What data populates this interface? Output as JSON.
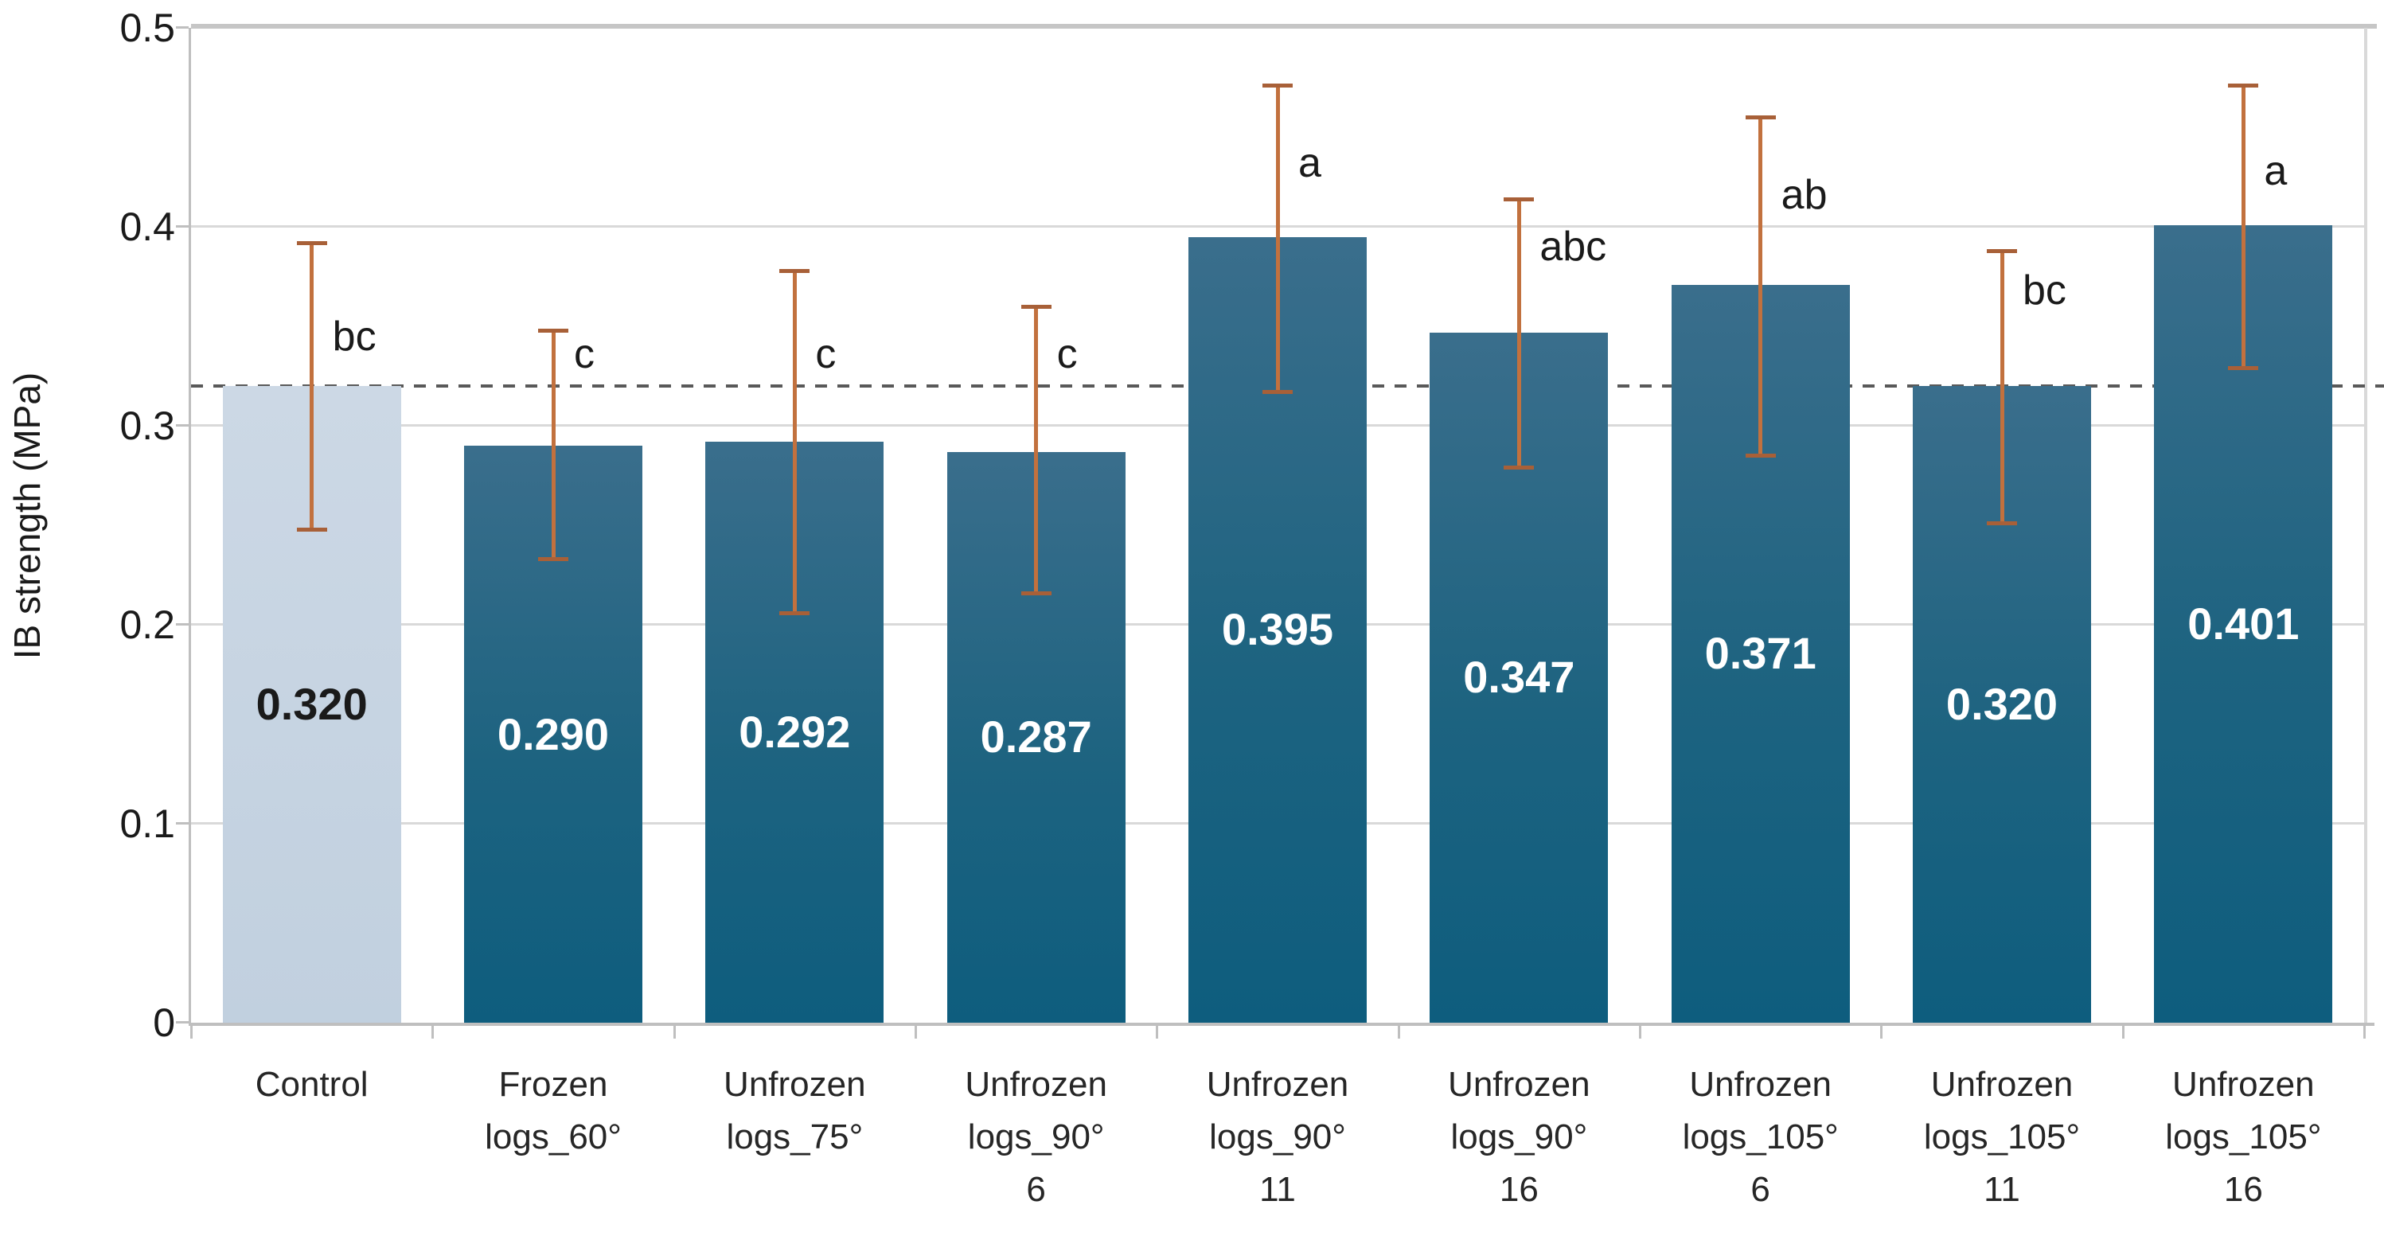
{
  "chart_data": {
    "type": "bar",
    "title": "",
    "xlabel": "",
    "ylabel": "IB strength (MPa)",
    "ylim": [
      0,
      0.5
    ],
    "yticks": [
      0,
      0.1,
      0.2,
      0.3,
      0.4,
      0.5
    ],
    "ytick_labels": [
      "0",
      "0.1",
      "0.2",
      "0.3",
      "0.4",
      "0.5"
    ],
    "grid": true,
    "legend": false,
    "categories": [
      [
        "Control"
      ],
      [
        "Frozen",
        "logs_60°"
      ],
      [
        "Unfrozen",
        "logs_75°"
      ],
      [
        "Unfrozen",
        "logs_90°",
        "6"
      ],
      [
        "Unfrozen",
        "logs_90°",
        "11"
      ],
      [
        "Unfrozen",
        "logs_90°",
        "16"
      ],
      [
        "Unfrozen",
        "logs_105°",
        "6"
      ],
      [
        "Unfrozen",
        "logs_105°",
        "11"
      ],
      [
        "Unfrozen",
        "logs_105°",
        "16"
      ]
    ],
    "values": [
      0.32,
      0.29,
      0.292,
      0.287,
      0.395,
      0.347,
      0.371,
      0.32,
      0.401
    ],
    "value_labels": [
      "0.320",
      "0.290",
      "0.292",
      "0.287",
      "0.395",
      "0.347",
      "0.371",
      "0.320",
      "0.401"
    ],
    "error_bars": [
      {
        "upper": 0.392,
        "lower": 0.248
      },
      {
        "upper": 0.348,
        "lower": 0.233
      },
      {
        "upper": 0.378,
        "lower": 0.206
      },
      {
        "upper": 0.36,
        "lower": 0.216
      },
      {
        "upper": 0.471,
        "lower": 0.317
      },
      {
        "upper": 0.414,
        "lower": 0.279
      },
      {
        "upper": 0.455,
        "lower": 0.285
      },
      {
        "upper": 0.388,
        "lower": 0.251
      },
      {
        "upper": 0.471,
        "lower": 0.329
      }
    ],
    "sig_letters": [
      "bc",
      "c",
      "c",
      "c",
      "a",
      "abc",
      "ab",
      "bc",
      "a"
    ],
    "sig_letter_heights": [
      0.345,
      0.336,
      0.336,
      0.336,
      0.432,
      0.39,
      0.416,
      0.368,
      0.428
    ],
    "reference_line": {
      "value": 0.32,
      "style": "dashed"
    },
    "bar_styles": [
      "control",
      "dark",
      "dark",
      "dark",
      "dark",
      "dark",
      "dark",
      "dark",
      "dark"
    ],
    "colors": {
      "bar_dark_top": "#3a6e8c",
      "bar_dark_mid": "#1d6380",
      "bar_dark_bottom": "#0e5d7e",
      "bar_control_top": "#ccd8e5",
      "bar_control_bottom": "#c1d0df",
      "error_bar": "#c2713e",
      "error_cap": "#a86038",
      "reference_line": "#595959",
      "gridline": "#d9d9d9",
      "axis_line": "#bfbfbf",
      "plot_top_border": "#c6c6c6",
      "text": "#1a1a1a",
      "x_label_text": "#262626",
      "value_label_dark_bar": "#ffffff",
      "value_label_control_bar": "#1a1a1a"
    }
  }
}
